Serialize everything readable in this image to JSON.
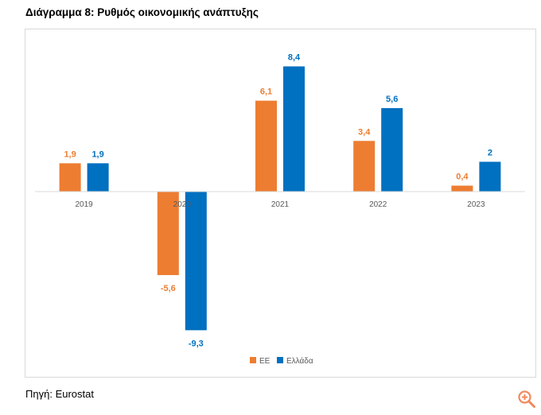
{
  "page": {
    "title": "Διάγραμμα 8: Ρυθμός οικονομικής ανάπτυξης",
    "source": "Πηγή: Eurostat",
    "zoom_icon": "zoom-in-icon"
  },
  "chart_data": {
    "type": "bar",
    "title": "",
    "xlabel": "",
    "ylabel": "",
    "categories": [
      "2019",
      "2020",
      "2021",
      "2022",
      "2023"
    ],
    "series": [
      {
        "name": "ΕΕ",
        "values": [
          1.9,
          -5.6,
          6.1,
          3.4,
          0.4
        ],
        "labels": [
          "1,9",
          "-5,6",
          "6,1",
          "3,4",
          "0,4"
        ],
        "color": "#ED7D31"
      },
      {
        "name": "Ελλάδα",
        "values": [
          1.9,
          -9.3,
          8.4,
          5.6,
          2.0
        ],
        "labels": [
          "1,9",
          "-9,3",
          "8,4",
          "5,6",
          "2"
        ],
        "color": "#0070C0"
      }
    ],
    "ylim": [
      -9.3,
      8.4
    ],
    "grid": false,
    "legend": "bottom-center",
    "axis_color": "#d9d9d9",
    "tick_label_color": "#595959"
  }
}
